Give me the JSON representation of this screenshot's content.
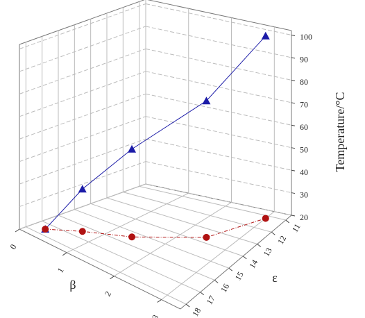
{
  "chart_data": {
    "type": "line3d",
    "x_label": "β",
    "y_label": "ε",
    "z_label": "Temperature/°C",
    "x": [
      0.24,
      0.68,
      1.4,
      2.45,
      3.0
    ],
    "y": [
      17.5,
      16.45,
      15.4,
      13.6,
      11.2
    ],
    "series": [
      {
        "color": "#1c1ca8",
        "marker": "triangle",
        "values": [
          20,
          38.8,
          59,
          80.6,
          101
        ]
      }
    ],
    "projection": {
      "color": "#b01212",
      "marker": "circle"
    },
    "xlim": [
      0,
      3.4
    ],
    "ylim": [
      10.6,
      18.4
    ],
    "zlim": [
      20,
      102
    ],
    "xticks": [
      0,
      1,
      2,
      3
    ],
    "yticks": [
      11,
      12,
      13,
      14,
      15,
      16,
      17,
      18
    ],
    "zticks": [
      20,
      30,
      40,
      50,
      60,
      70,
      80,
      90,
      100
    ],
    "grid": true
  }
}
